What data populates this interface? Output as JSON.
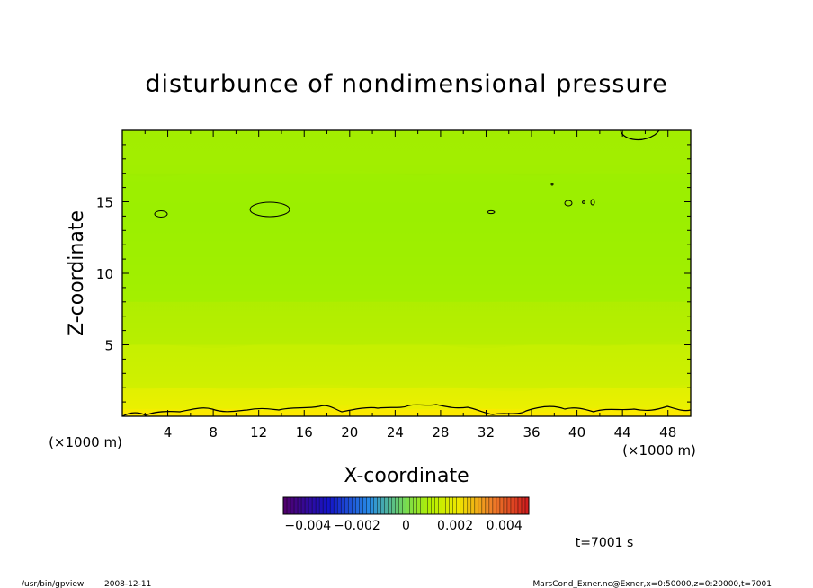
{
  "chart_data": {
    "type": "heatmap",
    "title": "disturbunce of nondimensional pressure",
    "xlabel": "X-coordinate",
    "ylabel": "Z-coordinate",
    "x_unit_left": "(×1000 m)",
    "x_unit_right": "(×1000 m)",
    "xlim": [
      0,
      50
    ],
    "ylim": [
      0,
      20
    ],
    "x_ticks": [
      4,
      8,
      12,
      16,
      20,
      24,
      28,
      32,
      36,
      40,
      44,
      48
    ],
    "y_ticks": [
      5,
      10,
      15
    ],
    "grid": false,
    "colorbar": {
      "range": [
        -0.005,
        0.005
      ],
      "tick_labels": [
        "−0.004",
        "−0.002",
        "0",
        "0.002",
        "0.004"
      ],
      "tick_values": [
        -0.004,
        -0.002,
        0,
        0.002,
        0.004
      ]
    },
    "field_bands": [
      {
        "z_from": 0,
        "z_to": 0.5,
        "value": 0.0022,
        "color": "#ffe800"
      },
      {
        "z_from": 0.5,
        "z_to": 2,
        "value": 0.0018,
        "color": "#e6f000"
      },
      {
        "z_from": 2,
        "z_to": 5,
        "value": 0.0014,
        "color": "#c8f000"
      },
      {
        "z_from": 5,
        "z_to": 8,
        "value": 0.0011,
        "color": "#b0ec00"
      },
      {
        "z_from": 8,
        "z_to": 17,
        "value": 0.0008,
        "color": "#9cf000"
      },
      {
        "z_from": 17,
        "z_to": 20,
        "value": 0.0009,
        "color": "#a4ee00"
      }
    ],
    "time_label": "t=7001 s",
    "annotations": {
      "program": "/usr/bin/gpview",
      "date": "2008-12-11",
      "source": "MarsCond_Exner.nc@Exner,x=0:50000,z=0:20000,t=7001"
    }
  }
}
